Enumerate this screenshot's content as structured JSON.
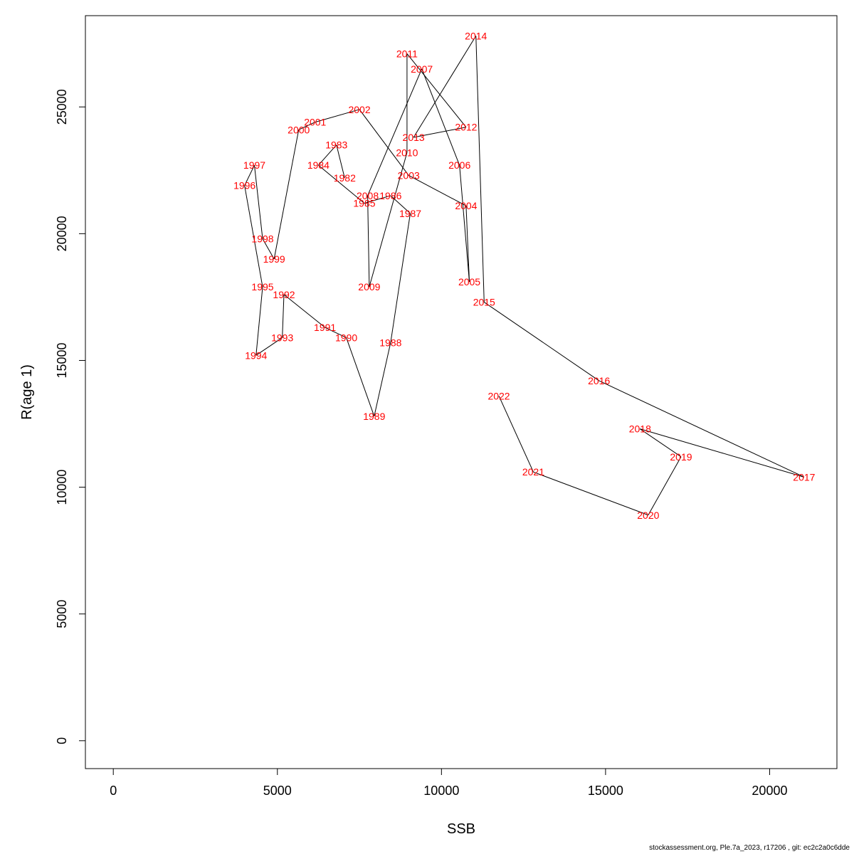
{
  "chart_data": {
    "type": "line",
    "title": "",
    "xlabel": "SSB",
    "ylabel": "R(age 1)",
    "xlim": [
      -850,
      22050
    ],
    "ylim": [
      -1100,
      28600
    ],
    "x_ticks": [
      0,
      5000,
      10000,
      15000,
      20000
    ],
    "y_ticks": [
      0,
      5000,
      10000,
      15000,
      20000,
      25000
    ],
    "grid": false,
    "line_color": "#000000",
    "label_color": "#ff0000",
    "points": [
      {
        "year": "1982",
        "ssb": 7050,
        "r": 22200
      },
      {
        "year": "1983",
        "ssb": 6800,
        "r": 23500
      },
      {
        "year": "1984",
        "ssb": 6250,
        "r": 22700
      },
      {
        "year": "1985",
        "ssb": 7650,
        "r": 21200
      },
      {
        "year": "1986",
        "ssb": 8450,
        "r": 21500
      },
      {
        "year": "1987",
        "ssb": 9050,
        "r": 20800
      },
      {
        "year": "1988",
        "ssb": 8450,
        "r": 15700
      },
      {
        "year": "1989",
        "ssb": 7950,
        "r": 12800
      },
      {
        "year": "1990",
        "ssb": 7100,
        "r": 15900
      },
      {
        "year": "1991",
        "ssb": 6450,
        "r": 16300
      },
      {
        "year": "1992",
        "ssb": 5200,
        "r": 17600
      },
      {
        "year": "1993",
        "ssb": 5150,
        "r": 15900
      },
      {
        "year": "1994",
        "ssb": 4350,
        "r": 15200
      },
      {
        "year": "1995",
        "ssb": 4550,
        "r": 17900
      },
      {
        "year": "1996",
        "ssb": 4000,
        "r": 21900
      },
      {
        "year": "1997",
        "ssb": 4300,
        "r": 22700
      },
      {
        "year": "1998",
        "ssb": 4550,
        "r": 19800
      },
      {
        "year": "1999",
        "ssb": 4900,
        "r": 19000
      },
      {
        "year": "2000",
        "ssb": 5650,
        "r": 24100
      },
      {
        "year": "2001",
        "ssb": 6150,
        "r": 24400
      },
      {
        "year": "2002",
        "ssb": 7500,
        "r": 24900
      },
      {
        "year": "2003",
        "ssb": 9000,
        "r": 22300
      },
      {
        "year": "2004",
        "ssb": 10750,
        "r": 21100
      },
      {
        "year": "2005",
        "ssb": 10850,
        "r": 18100
      },
      {
        "year": "2006",
        "ssb": 10550,
        "r": 22700
      },
      {
        "year": "2007",
        "ssb": 9400,
        "r": 26500
      },
      {
        "year": "2008",
        "ssb": 7750,
        "r": 21500
      },
      {
        "year": "2009",
        "ssb": 7800,
        "r": 17900
      },
      {
        "year": "2010",
        "ssb": 8950,
        "r": 23200
      },
      {
        "year": "2011",
        "ssb": 8950,
        "r": 27100
      },
      {
        "year": "2012",
        "ssb": 10750,
        "r": 24200
      },
      {
        "year": "2013",
        "ssb": 9150,
        "r": 23800
      },
      {
        "year": "2014",
        "ssb": 11050,
        "r": 27800
      },
      {
        "year": "2015",
        "ssb": 11300,
        "r": 17300
      },
      {
        "year": "2016",
        "ssb": 14800,
        "r": 14200
      },
      {
        "year": "2017",
        "ssb": 21050,
        "r": 10400
      },
      {
        "year": "2018",
        "ssb": 16050,
        "r": 12300
      },
      {
        "year": "2019",
        "ssb": 17300,
        "r": 11200
      },
      {
        "year": "2020",
        "ssb": 16300,
        "r": 8900
      },
      {
        "year": "2021",
        "ssb": 12800,
        "r": 10600
      },
      {
        "year": "2022",
        "ssb": 11750,
        "r": 13600
      }
    ]
  },
  "footer": {
    "text": "stockassessment.org, Ple.7a_2023, r17206 , git: ec2c2a0c6dde"
  }
}
